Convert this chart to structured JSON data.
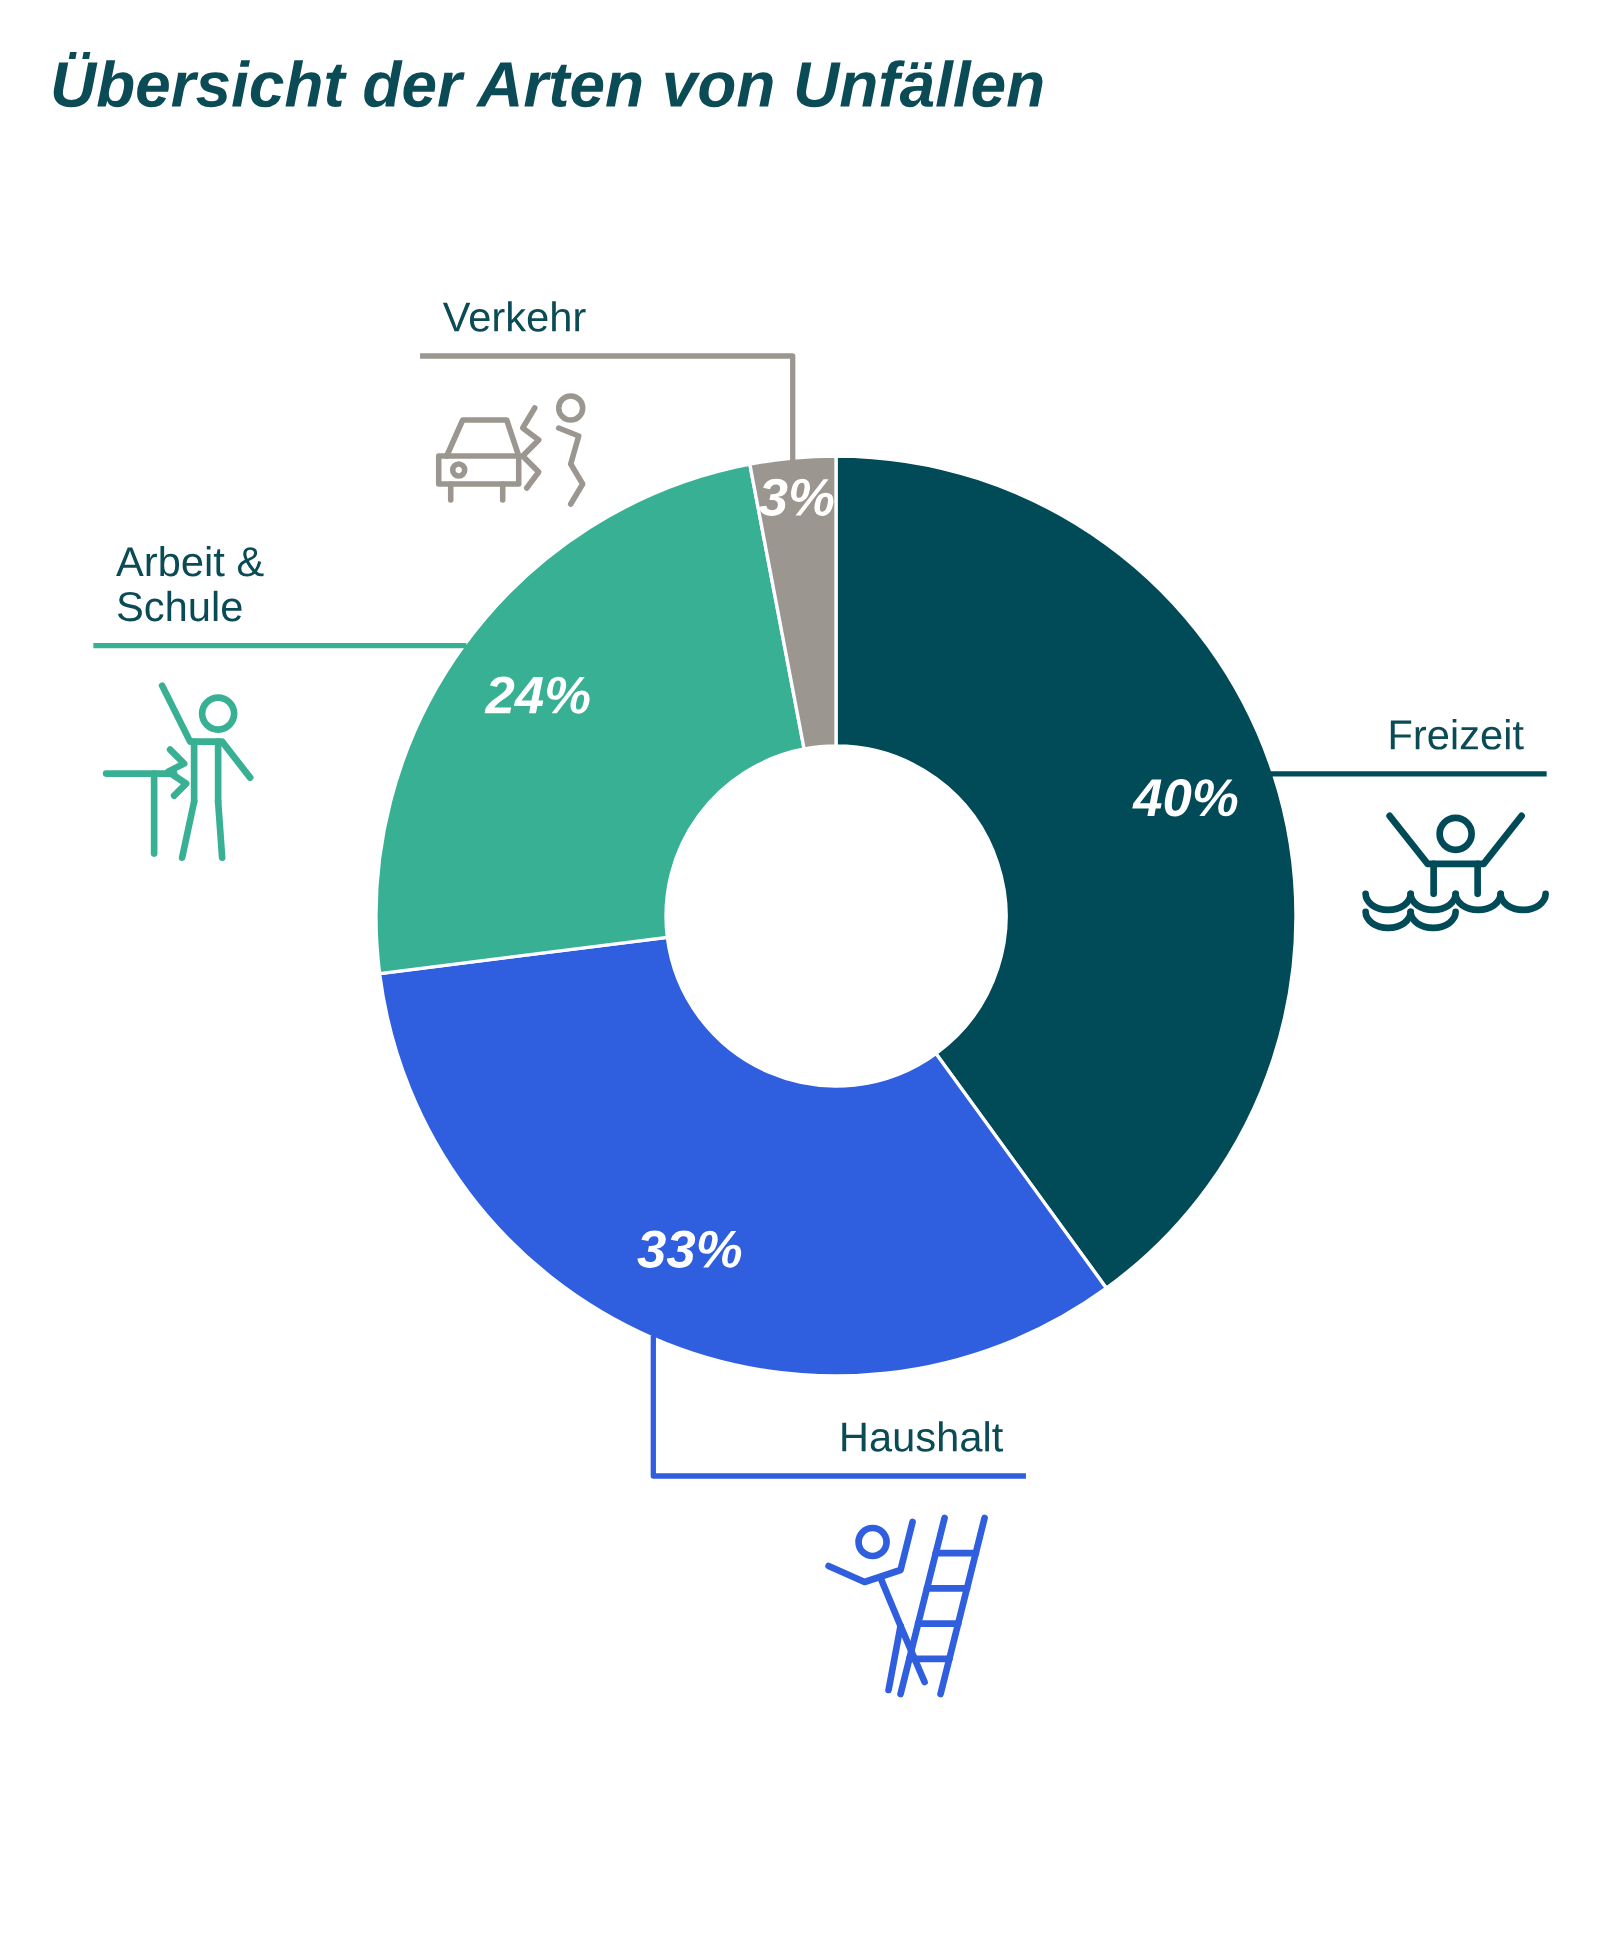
{
  "chart_data": {
    "type": "donut",
    "title": "Übersicht der Arten von Unfällen",
    "categories": [
      "Freizeit",
      "Haushalt",
      "Arbeit &\nSchule",
      "Verkehr"
    ],
    "values": [
      40,
      33,
      24,
      3
    ],
    "colors": [
      "#004b57",
      "#2f5fde",
      "#38b094",
      "#9b968f"
    ],
    "value_labels": [
      "40%",
      "33%",
      "24%",
      "3%"
    ]
  }
}
